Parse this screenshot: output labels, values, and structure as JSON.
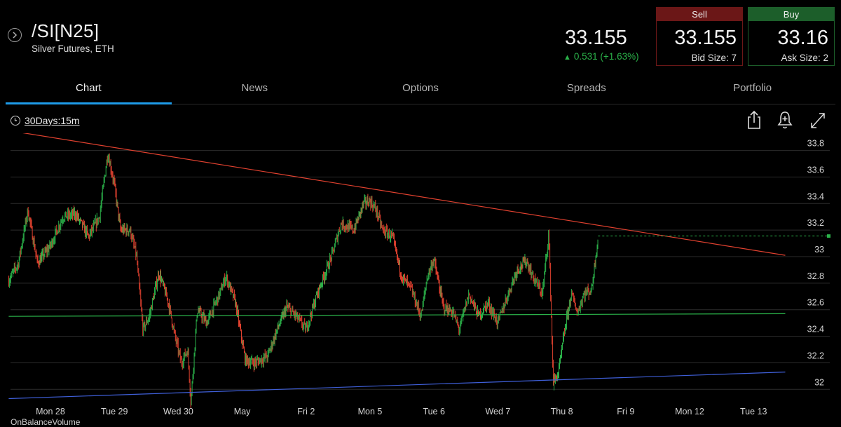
{
  "header": {
    "symbol": "/SI[N25]",
    "subtitle": "Silver Futures, ETH",
    "last_price": "33.155",
    "change": "0.531 (+1.63%)",
    "sell": {
      "label": "Sell",
      "price": "33.155",
      "size": "Bid Size: 7"
    },
    "buy": {
      "label": "Buy",
      "price": "33.16",
      "size": "Ask Size: 2"
    }
  },
  "tabs": [
    "Chart",
    "News",
    "Options",
    "Spreads",
    "Portfolio"
  ],
  "active_tab": "Chart",
  "toolbar": {
    "range": "30Days:15m"
  },
  "indicator": "OnBalanceVolume",
  "colors": {
    "up": "#2bb34a",
    "down": "#e0412f",
    "accent": "#1e9be9",
    "sell": "#6b1717",
    "buy": "#1c5e2a"
  },
  "icons": [
    "back-icon",
    "clock-icon",
    "share-icon",
    "alert-bell-icon",
    "expand-icon"
  ],
  "chart_data": {
    "type": "candlestick",
    "interval": "15m",
    "x_tick_labels": [
      "Mon 28",
      "Tue 29",
      "Wed 30",
      "May",
      "Fri 2",
      "Mon 5",
      "Tue 6",
      "Wed 7",
      "Thu 8",
      "Fri 9",
      "Mon 12",
      "Tue 13"
    ],
    "y_ticks": [
      32,
      32.2,
      32.4,
      32.6,
      32.8,
      33,
      33.2,
      33.4,
      33.6,
      33.8
    ],
    "y_tick_labels": [
      "32",
      "32.2",
      "32.4",
      "32.6",
      "32.8",
      "33",
      "33.2",
      "33.4",
      "33.6",
      "33.8"
    ],
    "ylim": [
      31.79,
      33.93
    ],
    "xlim": [
      0,
      11.65
    ],
    "grid": true,
    "last_price": 33.155,
    "close_path": [
      [
        -0.5,
        32.82
      ],
      [
        -0.35,
        32.95
      ],
      [
        -0.2,
        33.35
      ],
      [
        -0.05,
        32.95
      ],
      [
        0.15,
        33.08
      ],
      [
        0.35,
        33.3
      ],
      [
        0.55,
        33.32
      ],
      [
        0.75,
        33.15
      ],
      [
        0.92,
        33.3
      ],
      [
        1.0,
        33.6
      ],
      [
        1.05,
        33.78
      ],
      [
        1.15,
        33.55
      ],
      [
        1.25,
        33.2
      ],
      [
        1.4,
        33.2
      ],
      [
        1.5,
        33.0
      ],
      [
        1.6,
        32.45
      ],
      [
        1.7,
        32.55
      ],
      [
        1.85,
        32.88
      ],
      [
        2.0,
        32.65
      ],
      [
        2.1,
        32.4
      ],
      [
        2.2,
        32.2
      ],
      [
        2.3,
        32.3
      ],
      [
        2.35,
        31.9
      ],
      [
        2.45,
        32.6
      ],
      [
        2.6,
        32.5
      ],
      [
        2.8,
        32.72
      ],
      [
        2.9,
        32.85
      ],
      [
        3.05,
        32.65
      ],
      [
        3.2,
        32.22
      ],
      [
        3.35,
        32.2
      ],
      [
        3.55,
        32.25
      ],
      [
        3.7,
        32.45
      ],
      [
        3.85,
        32.62
      ],
      [
        4.0,
        32.55
      ],
      [
        4.15,
        32.45
      ],
      [
        4.35,
        32.75
      ],
      [
        4.55,
        33.0
      ],
      [
        4.7,
        33.25
      ],
      [
        4.9,
        33.2
      ],
      [
        5.05,
        33.4
      ],
      [
        5.15,
        33.42
      ],
      [
        5.25,
        33.35
      ],
      [
        5.35,
        33.2
      ],
      [
        5.5,
        33.15
      ],
      [
        5.65,
        32.85
      ],
      [
        5.8,
        32.75
      ],
      [
        5.95,
        32.55
      ],
      [
        6.05,
        32.85
      ],
      [
        6.15,
        32.98
      ],
      [
        6.3,
        32.62
      ],
      [
        6.45,
        32.58
      ],
      [
        6.55,
        32.45
      ],
      [
        6.7,
        32.72
      ],
      [
        6.85,
        32.55
      ],
      [
        7.0,
        32.65
      ],
      [
        7.15,
        32.5
      ],
      [
        7.3,
        32.7
      ],
      [
        7.45,
        32.9
      ],
      [
        7.6,
        32.97
      ],
      [
        7.7,
        32.85
      ],
      [
        7.85,
        32.72
      ],
      [
        7.95,
        33.18
      ],
      [
        8.02,
        32.05
      ],
      [
        8.1,
        32.12
      ],
      [
        8.2,
        32.45
      ],
      [
        8.3,
        32.72
      ],
      [
        8.4,
        32.58
      ],
      [
        8.5,
        32.72
      ],
      [
        8.62,
        32.75
      ],
      [
        8.72,
        33.15
      ]
    ],
    "trendlines": [
      {
        "color": "#e0412f",
        "start": [
          -0.5,
          33.95
        ],
        "end": [
          11.65,
          33.01
        ]
      },
      {
        "color": "#3f5fd8",
        "start": [
          -0.5,
          31.93
        ],
        "end": [
          11.65,
          32.13
        ]
      },
      {
        "color": "#2bb34a",
        "start": [
          -0.5,
          32.55
        ],
        "end": [
          11.65,
          32.57
        ]
      }
    ]
  }
}
